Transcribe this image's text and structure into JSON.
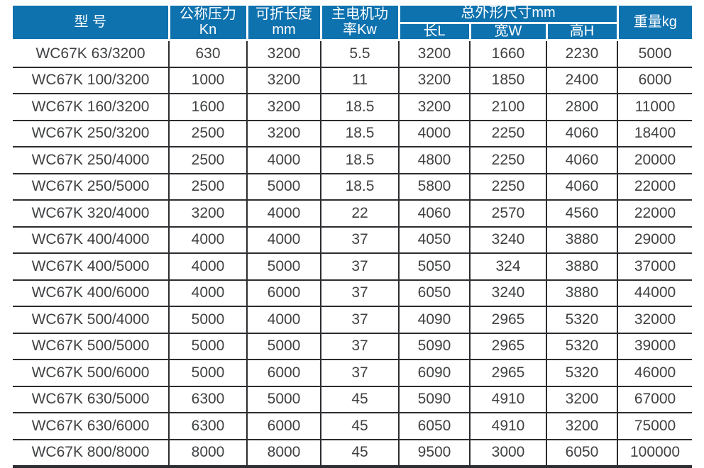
{
  "table": {
    "columns": {
      "model": "型 号",
      "pressure_line1": "公称压力",
      "pressure_line2": "Kn",
      "length_line1": "可折长度",
      "length_line2": "mm",
      "power_line1": "主电机功",
      "power_line2": "率Kw",
      "dims_group": "总外形尺寸mm",
      "dim_l": "长L",
      "dim_w": "宽W",
      "dim_h": "高H",
      "weight": "重量kg"
    },
    "rows": [
      [
        "WC67K 63/3200",
        "630",
        "3200",
        "5.5",
        "3200",
        "1660",
        "2230",
        "5000"
      ],
      [
        "WC67K 100/3200",
        "1000",
        "3200",
        "11",
        "3200",
        "1850",
        "2400",
        "6000"
      ],
      [
        "WC67K 160/3200",
        "1600",
        "3200",
        "18.5",
        "3200",
        "2100",
        "2800",
        "11000"
      ],
      [
        "WC67K 250/3200",
        "2500",
        "3200",
        "18.5",
        "4000",
        "2250",
        "4060",
        "18400"
      ],
      [
        "WC67K 250/4000",
        "2500",
        "4000",
        "18.5",
        "4800",
        "2250",
        "4060",
        "20000"
      ],
      [
        "WC67K 250/5000",
        "2500",
        "5000",
        "18.5",
        "5800",
        "2250",
        "4060",
        "22000"
      ],
      [
        "WC67K 320/4000",
        "3200",
        "4000",
        "22",
        "4060",
        "2570",
        "4560",
        "22000"
      ],
      [
        "WC67K 400/4000",
        "4000",
        "4000",
        "37",
        "4050",
        "3240",
        "3880",
        "29000"
      ],
      [
        "WC67K 400/5000",
        "4000",
        "5000",
        "37",
        "5050",
        "324",
        "3880",
        "37000"
      ],
      [
        "WC67K 400/6000",
        "4000",
        "6000",
        "37",
        "6050",
        "3240",
        "3880",
        "44000"
      ],
      [
        "WC67K 500/4000",
        "5000",
        "4000",
        "37",
        "4090",
        "2965",
        "5320",
        "32000"
      ],
      [
        "WC67K 500/5000",
        "5000",
        "5000",
        "37",
        "5090",
        "2965",
        "5320",
        "39000"
      ],
      [
        "WC67K 500/6000",
        "5000",
        "6000",
        "37",
        "6090",
        "2965",
        "5320",
        "46000"
      ],
      [
        "WC67K 630/5000",
        "6300",
        "5000",
        "45",
        "5090",
        "4910",
        "3200",
        "67000"
      ],
      [
        "WC67K 630/6000",
        "6300",
        "6000",
        "45",
        "6050",
        "4910",
        "3200",
        "75000"
      ],
      [
        "WC67K 800/8000",
        "8000",
        "8000",
        "45",
        "9500",
        "3000",
        "6050",
        "100000"
      ]
    ]
  },
  "colors": {
    "header_bg": "#0e72af",
    "header_text": "#ffffff",
    "body_text": "#3f4143",
    "border": "#2b2d30"
  }
}
